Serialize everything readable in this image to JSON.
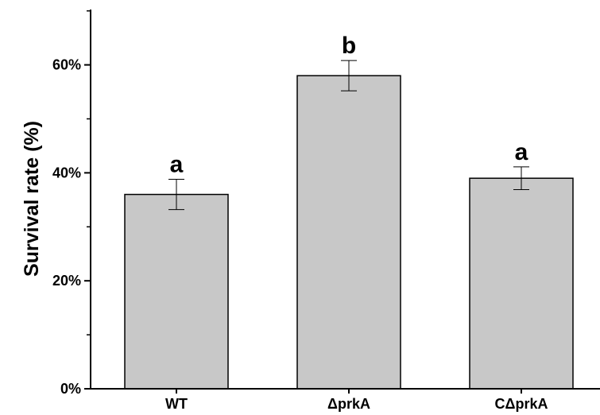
{
  "chart_data": {
    "type": "bar",
    "title": "",
    "xlabel": "",
    "ylabel": "Survival rate (%)",
    "categories": [
      "WT",
      "ΔprkA",
      "CΔprkA"
    ],
    "values": [
      36,
      58,
      39
    ],
    "error": [
      2.8,
      2.8,
      2.1
    ],
    "significance": [
      "a",
      "b",
      "a"
    ],
    "ylim": [
      0,
      70
    ],
    "yticks": [
      0,
      20,
      40,
      60
    ],
    "ytick_labels": [
      "0%",
      "20%",
      "40%",
      "60%"
    ],
    "grid": false,
    "bar_color": "#c8c8c8",
    "edge_color": "#000000"
  }
}
